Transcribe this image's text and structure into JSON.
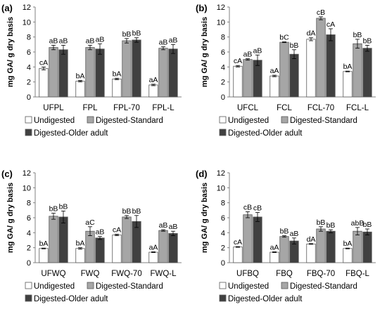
{
  "colors": {
    "Undigested": "#ffffff",
    "Digested-Standard": "#a6a6a6",
    "Digested-Older adult": "#404040",
    "axis": "#808080",
    "text": "#000000"
  },
  "chart_data": [
    {
      "type": "bar",
      "panel_label": "(a)",
      "ylabel": "mg GA/ g dry basis",
      "ylim": [
        0,
        12
      ],
      "yticks": [
        "0",
        "2",
        "4",
        "6",
        "8",
        "10",
        "12"
      ],
      "categories": [
        "UFPL",
        "FPL",
        "FPL-70",
        "FPL-L"
      ],
      "legend": [
        "Undigested",
        "Digested-Standard",
        "Digested-Older adult"
      ],
      "series": [
        {
          "name": "Undigested",
          "values": [
            3.8,
            2.1,
            2.4,
            1.6
          ],
          "errors": [
            0.2,
            0.1,
            0.1,
            0.1
          ],
          "labels": [
            "cA",
            "bA",
            "bA",
            "aA"
          ]
        },
        {
          "name": "Digested-Standard",
          "values": [
            6.6,
            6.6,
            7.5,
            6.5
          ],
          "errors": [
            0.3,
            0.3,
            0.3,
            0.2
          ],
          "labels": [
            "aB",
            "aB",
            "bB",
            "aB"
          ]
        },
        {
          "name": "Digested-Older adult",
          "values": [
            6.3,
            6.4,
            7.6,
            6.4
          ],
          "errors": [
            0.6,
            0.7,
            0.3,
            0.6
          ],
          "labels": [
            "aB",
            "aB",
            "bB",
            "aB"
          ]
        }
      ]
    },
    {
      "type": "bar",
      "panel_label": "(b)",
      "ylabel": "mg GA/ g dry basis",
      "ylim": [
        0,
        12
      ],
      "yticks": [
        "0",
        "2",
        "4",
        "6",
        "8",
        "10",
        "12"
      ],
      "categories": [
        "UFCL",
        "FCL",
        "FCL-70",
        "FCL-L"
      ],
      "legend": [
        "Undigested",
        "Digested-Standard",
        "Digested-Older adult"
      ],
      "series": [
        {
          "name": "Undigested",
          "values": [
            4.1,
            2.8,
            7.7,
            3.4
          ],
          "errors": [
            0.1,
            0.1,
            0.2,
            0.05
          ],
          "labels": [
            "cA",
            "aA",
            "dA",
            "bA"
          ]
        },
        {
          "name": "Digested-Standard",
          "values": [
            5.0,
            7.3,
            10.5,
            7.1
          ],
          "errors": [
            0.1,
            0.05,
            0.2,
            0.6
          ],
          "labels": [
            "aB",
            "bC",
            "cB",
            "bB"
          ]
        },
        {
          "name": "Digested-Older adult",
          "values": [
            4.9,
            5.7,
            8.3,
            6.5
          ],
          "errors": [
            0.7,
            0.6,
            0.8,
            0.4
          ],
          "labels": [
            "aB",
            "bB",
            "cA",
            "bB"
          ]
        }
      ]
    },
    {
      "type": "bar",
      "panel_label": "(c)",
      "ylabel": "mg GA/ g dry basis",
      "ylim": [
        0,
        12
      ],
      "yticks": [
        "0",
        "2",
        "4",
        "6",
        "8",
        "10",
        "12"
      ],
      "categories": [
        "UFWQ",
        "FWQ",
        "FWQ-70",
        "FWQ-L"
      ],
      "legend": [
        "Undigested",
        "Digested-Standard",
        "Digested-Older adult"
      ],
      "series": [
        {
          "name": "Undigested",
          "values": [
            1.9,
            1.9,
            3.7,
            1.4
          ],
          "errors": [
            0.05,
            0.1,
            0.1,
            0.05
          ],
          "labels": [
            "bA",
            "bA",
            "cA",
            "aA"
          ]
        },
        {
          "name": "Digested-Standard",
          "values": [
            6.2,
            4.2,
            6.1,
            4.3
          ],
          "errors": [
            0.4,
            0.6,
            0.2,
            0.1
          ],
          "labels": [
            "bB",
            "aC",
            "bB",
            "aB"
          ]
        },
        {
          "name": "Digested-Older adult",
          "values": [
            6.1,
            3.3,
            5.5,
            3.9
          ],
          "errors": [
            0.8,
            0.2,
            0.8,
            0.3
          ],
          "labels": [
            "bB",
            "aB",
            "bB",
            "aB"
          ]
        }
      ]
    },
    {
      "type": "bar",
      "panel_label": "(d)",
      "ylabel": "mg GA/ g dry basis",
      "ylim": [
        0,
        12
      ],
      "yticks": [
        "0",
        "2",
        "4",
        "6",
        "8",
        "10",
        "12"
      ],
      "categories": [
        "UFBQ",
        "FBQ",
        "FBQ-70",
        "FBQ-L"
      ],
      "legend": [
        "Undigested",
        "Digested-Standard",
        "Digested-Older adult"
      ],
      "series": [
        {
          "name": "Undigested",
          "values": [
            2.1,
            1.4,
            2.5,
            1.9
          ],
          "errors": [
            0.05,
            0.05,
            0.05,
            0.05
          ],
          "labels": [
            "cA",
            "aA",
            "dA",
            "bA"
          ]
        },
        {
          "name": "Digested-Standard",
          "values": [
            6.4,
            3.5,
            4.5,
            4.2
          ],
          "errors": [
            0.4,
            0.1,
            0.3,
            0.5
          ],
          "labels": [
            "cB",
            "bB",
            "bB",
            "abB"
          ]
        },
        {
          "name": "Digested-Older adult",
          "values": [
            6.1,
            2.9,
            4.2,
            4.1
          ],
          "errors": [
            0.6,
            0.4,
            0.2,
            0.4
          ],
          "labels": [
            "cB",
            "aB",
            "bB",
            "bB"
          ]
        }
      ]
    }
  ]
}
